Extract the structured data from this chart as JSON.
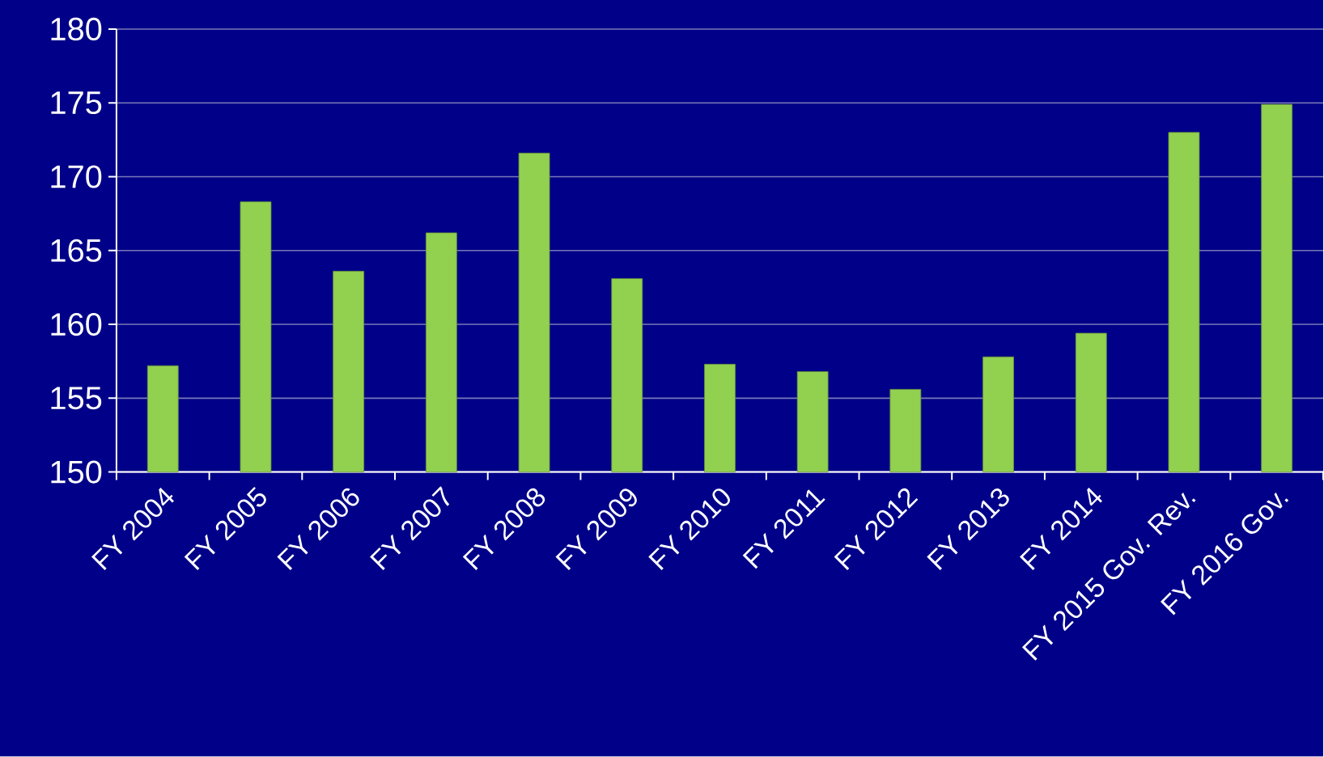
{
  "chart_data": {
    "type": "bar",
    "categories": [
      "FY 2004",
      "FY 2005",
      "FY 2006",
      "FY 2007",
      "FY 2008",
      "FY 2009",
      "FY 2010",
      "FY 2011",
      "FY 2012",
      "FY 2013",
      "FY 2014",
      "FY 2015 Gov. Rev.",
      "FY 2016 Gov."
    ],
    "values": [
      157.2,
      168.3,
      163.6,
      166.2,
      171.6,
      163.1,
      157.3,
      156.8,
      155.6,
      157.8,
      159.4,
      173.0,
      174.9
    ],
    "color": "#92d050",
    "ylim": [
      150,
      180
    ],
    "yticks": [
      150,
      155,
      160,
      165,
      170,
      175,
      180
    ],
    "grid": "y"
  }
}
